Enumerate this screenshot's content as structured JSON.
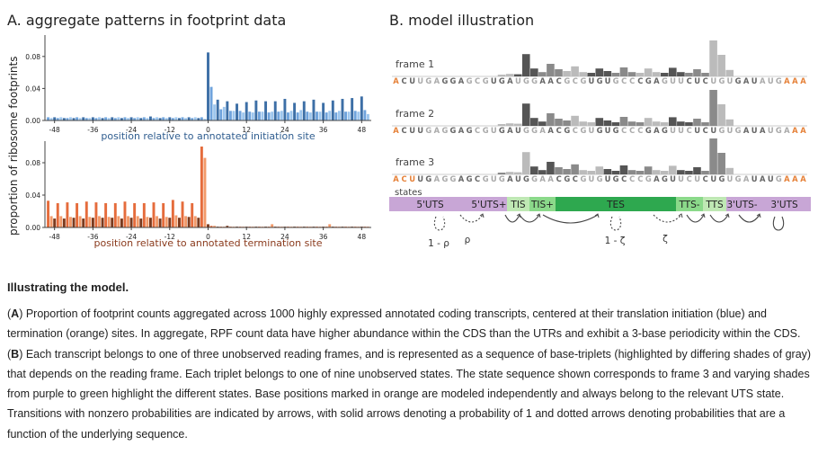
{
  "panel_a": {
    "title": "A. aggregate patterns in footprint data",
    "ylabel": "proportion of ribosome footprints",
    "chart_data": [
      {
        "type": "bar",
        "name": "initiation",
        "xlabel": "position relative to annotated initiation site",
        "xticks": [
          "-48",
          "-36",
          "-24",
          "-12",
          "0",
          "12",
          "24",
          "36",
          "48"
        ],
        "yticks": [
          "0.00",
          "0.04",
          "0.08"
        ],
        "ylim": [
          0,
          0.1
        ],
        "xlim": [
          -51,
          51
        ],
        "colors": [
          "#3d6fa6",
          "#6fa3dc",
          "#9dc6ee"
        ],
        "x": [
          -50,
          -49,
          -48,
          -47,
          -46,
          -45,
          -44,
          -43,
          -42,
          -41,
          -40,
          -39,
          -38,
          -37,
          -36,
          -35,
          -34,
          -33,
          -32,
          -31,
          -30,
          -29,
          -28,
          -27,
          -26,
          -25,
          -24,
          -23,
          -22,
          -21,
          -20,
          -19,
          -18,
          -17,
          -16,
          -15,
          -14,
          -13,
          -12,
          -11,
          -10,
          -9,
          -8,
          -7,
          -6,
          -5,
          -4,
          -3,
          -2,
          -1,
          0,
          1,
          2,
          3,
          4,
          5,
          6,
          7,
          8,
          9,
          10,
          11,
          12,
          13,
          14,
          15,
          16,
          17,
          18,
          19,
          20,
          21,
          22,
          23,
          24,
          25,
          26,
          27,
          28,
          29,
          30,
          31,
          32,
          33,
          34,
          35,
          36,
          37,
          38,
          39,
          40,
          41,
          42,
          43,
          44,
          45,
          46,
          47,
          48,
          49,
          50
        ],
        "values": [
          0.004,
          0.003,
          0.004,
          0.003,
          0.004,
          0.003,
          0.003,
          0.004,
          0.003,
          0.004,
          0.003,
          0.004,
          0.003,
          0.003,
          0.004,
          0.003,
          0.004,
          0.003,
          0.004,
          0.003,
          0.004,
          0.003,
          0.004,
          0.003,
          0.004,
          0.003,
          0.004,
          0.003,
          0.004,
          0.003,
          0.004,
          0.003,
          0.005,
          0.003,
          0.004,
          0.003,
          0.004,
          0.003,
          0.004,
          0.003,
          0.004,
          0.003,
          0.004,
          0.003,
          0.004,
          0.003,
          0.004,
          0.003,
          0.004,
          0.002,
          0.085,
          0.042,
          0.02,
          0.026,
          0.014,
          0.017,
          0.024,
          0.012,
          0.012,
          0.021,
          0.012,
          0.01,
          0.023,
          0.011,
          0.01,
          0.025,
          0.011,
          0.011,
          0.024,
          0.01,
          0.011,
          0.024,
          0.011,
          0.012,
          0.027,
          0.01,
          0.012,
          0.022,
          0.01,
          0.013,
          0.024,
          0.011,
          0.01,
          0.026,
          0.011,
          0.011,
          0.022,
          0.01,
          0.012,
          0.025,
          0.01,
          0.012,
          0.027,
          0.011,
          0.011,
          0.028,
          0.012,
          0.011,
          0.03,
          0.013,
          0.008
        ]
      },
      {
        "type": "bar",
        "name": "termination",
        "xlabel": "position relative to annotated termination site",
        "xticks": [
          "-48",
          "-36",
          "-24",
          "-12",
          "0",
          "12",
          "24",
          "36",
          "48"
        ],
        "yticks": [
          "0.00",
          "0.04",
          "0.08"
        ],
        "ylim": [
          0,
          0.1
        ],
        "xlim": [
          -51,
          51
        ],
        "colors": [
          "#7b3a1e",
          "#e56c3c",
          "#f29a6a"
        ],
        "x": [
          -50,
          -49,
          -48,
          -47,
          -46,
          -45,
          -44,
          -43,
          -42,
          -41,
          -40,
          -39,
          -38,
          -37,
          -36,
          -35,
          -34,
          -33,
          -32,
          -31,
          -30,
          -29,
          -28,
          -27,
          -26,
          -25,
          -24,
          -23,
          -22,
          -21,
          -20,
          -19,
          -18,
          -17,
          -16,
          -15,
          -14,
          -13,
          -12,
          -11,
          -10,
          -9,
          -8,
          -7,
          -6,
          -5,
          -4,
          -3,
          -2,
          -1,
          0,
          1,
          2,
          3,
          4,
          5,
          6,
          7,
          8,
          9,
          10,
          11,
          12,
          13,
          14,
          15,
          16,
          17,
          18,
          19,
          20,
          21,
          22,
          23,
          24,
          25,
          26,
          27,
          28,
          29,
          30,
          31,
          32,
          33,
          34,
          35,
          36,
          37,
          38,
          39,
          40,
          41,
          42,
          43,
          44,
          45,
          46,
          47,
          48,
          49,
          50
        ],
        "values": [
          0.033,
          0.014,
          0.011,
          0.03,
          0.014,
          0.011,
          0.031,
          0.013,
          0.012,
          0.03,
          0.014,
          0.011,
          0.032,
          0.013,
          0.012,
          0.031,
          0.014,
          0.012,
          0.03,
          0.013,
          0.012,
          0.03,
          0.014,
          0.011,
          0.032,
          0.014,
          0.012,
          0.03,
          0.014,
          0.011,
          0.03,
          0.013,
          0.012,
          0.031,
          0.014,
          0.011,
          0.03,
          0.013,
          0.012,
          0.034,
          0.015,
          0.012,
          0.032,
          0.014,
          0.013,
          0.03,
          0.014,
          0.012,
          0.1,
          0.086,
          0.004,
          0.002,
          0.002,
          0.001,
          0.001,
          0.001,
          0.002,
          0.001,
          0.001,
          0.001,
          0.001,
          0.001,
          0.001,
          0.001,
          0.001,
          0.001,
          0.001,
          0.001,
          0.001,
          0.001,
          0.004,
          0.001,
          0.001,
          0.001,
          0.001,
          0.001,
          0.001,
          0.001,
          0.001,
          0.001,
          0.001,
          0.001,
          0.001,
          0.001,
          0.001,
          0.001,
          0.001,
          0.001,
          0.004,
          0.001,
          0.001,
          0.001,
          0.001,
          0.001,
          0.001,
          0.001,
          0.001,
          0.001,
          0.001,
          0.001,
          0.001
        ]
      }
    ]
  },
  "panel_b": {
    "title": "B. model illustration",
    "sequence": "ACUUGAGGAGCGUGAUGGAACGCGUGUGCCCGAGUUCUCUGUGAUAUGAAA",
    "seq_heights": [
      0,
      0,
      0,
      0,
      0,
      0,
      0,
      0,
      0,
      0,
      0,
      0,
      0,
      0.05,
      0.07,
      0.06,
      0.62,
      0.22,
      0.12,
      0.35,
      0.2,
      0.15,
      0.28,
      0.12,
      0.1,
      0.22,
      0.15,
      0.1,
      0.25,
      0.12,
      0.1,
      0.22,
      0.12,
      0.1,
      0.24,
      0.12,
      0.1,
      0.2,
      0.1,
      1.0,
      0.6,
      0.18,
      0,
      0,
      0,
      0,
      0,
      0,
      0,
      0,
      0
    ],
    "frames": [
      {
        "label": "frame 1",
        "orange_start": 1,
        "orange_end": 3,
        "seq_colors": "orange-start-and-end"
      },
      {
        "label": "frame 2",
        "orange_start": 1,
        "orange_end": 2
      },
      {
        "label": "frame 3",
        "orange_start": 3,
        "orange_end": 3
      }
    ],
    "states_label": "states",
    "states": [
      {
        "label": "5'UTS",
        "color": "#c8a6d6"
      },
      {
        "label": "5'UTS+",
        "color": "#c8a6d6"
      },
      {
        "label": "TIS",
        "color": "#bfe8b4"
      },
      {
        "label": "TIS+",
        "color": "#8bd98a"
      },
      {
        "label": "TES",
        "color": "#2ea84f"
      },
      {
        "label": "TTS-",
        "color": "#8bd98a"
      },
      {
        "label": "TTS",
        "color": "#bfe8b4"
      },
      {
        "label": "3'UTS-",
        "color": "#c8a6d6"
      },
      {
        "label": "3'UTS",
        "color": "#c8a6d6"
      }
    ],
    "transition_labels": [
      "1 - ρ",
      "ρ",
      "1 - ζ",
      "ζ"
    ]
  },
  "caption": {
    "title": "Illustrating the model.",
    "a_label": "A",
    "a_text": " Proportion of footprint counts aggregated across 1000 highly expressed annotated coding transcripts, centered at their translation initiation (blue) and termination (orange) sites. In aggregate, RPF count data have higher abundance within the CDS than the UTRs and exhibit a 3-base periodicity within the CDS. ",
    "b_label": "B",
    "b_text": " Each transcript belongs to one of three unobserved reading frames, and is represented as a sequence of base-triplets (highlighted by differing shades of gray) that depends on the reading frame. Each triplet belongs to one of nine unobserved states. The state sequence shown corresponds to frame 3 and varying shades from purple to green highlight the different states. Base positions marked in orange are modeled independently and always belong to the relevant UTS state. Transitions with nonzero probabilities are indicated by arrows, with solid arrows denoting a probability of 1 and dotted arrows denoting probabilities that are a function of the underlying sequence."
  }
}
